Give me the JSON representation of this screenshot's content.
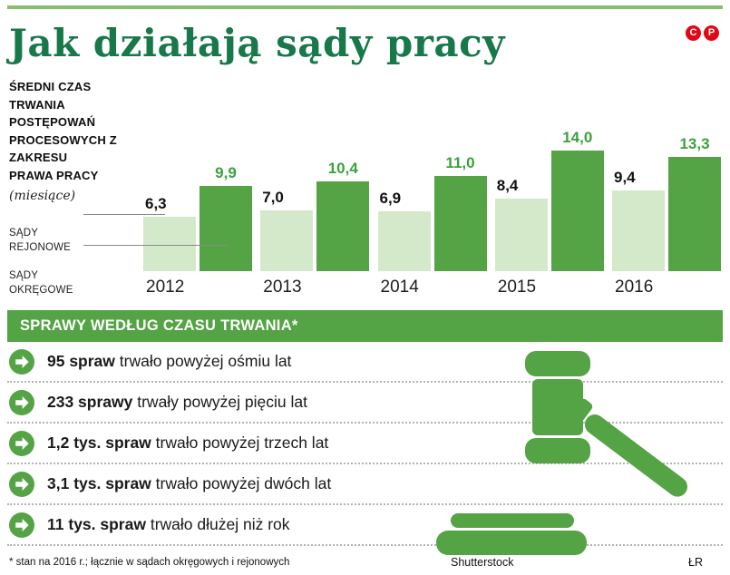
{
  "colors": {
    "dark_green": "#54a345",
    "light_green": "#d4e8ca",
    "title_green": "#17784a",
    "value_green": "#3aa23a",
    "red": "#e30613",
    "rule_green": "#86c06a"
  },
  "header": {
    "title": "Jak działają sądy pracy",
    "rights_marks": [
      "C",
      "P"
    ]
  },
  "chart_data": {
    "type": "bar",
    "title_lines": [
      "ŚREDNI CZAS TRWANIA POSTĘPOWAŃ",
      "PROCESOWYCH Z ZAKRESU",
      "PRAWA PRACY"
    ],
    "unit_label": "(miesiące)",
    "categories": [
      "2012",
      "2013",
      "2014",
      "2015",
      "2016"
    ],
    "series": [
      {
        "name_lines": [
          "SĄDY",
          "REJONOWE"
        ],
        "values": [
          6.3,
          7.0,
          6.9,
          8.4,
          9.4
        ],
        "value_labels": [
          "6,3",
          "7,0",
          "6,9",
          "8,4",
          "9,4"
        ]
      },
      {
        "name_lines": [
          "SĄDY",
          "OKRĘGOWE"
        ],
        "values": [
          9.9,
          10.4,
          11.0,
          14.0,
          13.3
        ],
        "value_labels": [
          "9,9",
          "10,4",
          "11,0",
          "14,0",
          "13,3"
        ]
      }
    ],
    "ylim": [
      0,
      14
    ],
    "legend_position": "left",
    "grid": false
  },
  "duration_section": {
    "title": "SPRAWY WEDŁUG CZASU TRWANIA*",
    "items": [
      {
        "value": "95 spraw",
        "text": "trwało powyżej ośmiu lat"
      },
      {
        "value": "233 sprawy",
        "text": "trwały powyżej pięciu lat"
      },
      {
        "value": "1,2 tys. spraw",
        "text": "trwało powyżej trzech lat"
      },
      {
        "value": "3,1 tys. spraw",
        "text": "trwało powyżej dwóch lat"
      },
      {
        "value": "11 tys. spraw",
        "text": "trwało dłużej niż rok"
      }
    ]
  },
  "footer": {
    "footnote": "* stan na 2016 r.; łącznie w sądach okręgowych i rejonowych",
    "source": "Shutterstock",
    "author": "ŁR"
  }
}
